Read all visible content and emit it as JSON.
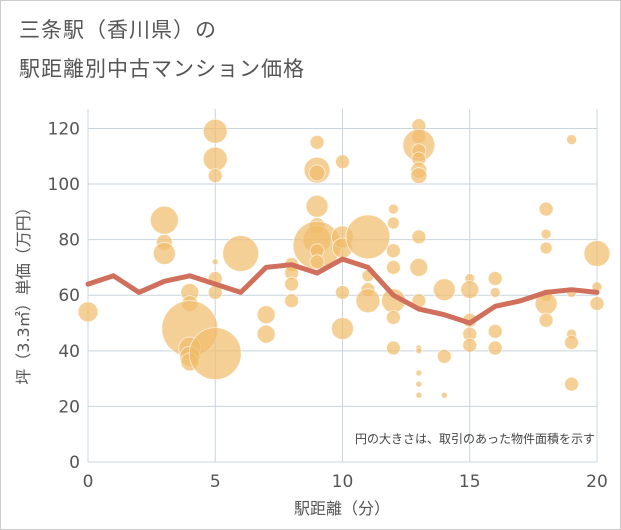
{
  "title": {
    "line1": "三条駅（香川県）の",
    "line2": "駅距離別中古マンション価格"
  },
  "colors": {
    "bubble": "#f0bc6a",
    "line": "#d0705c",
    "grid": "#c8d4de",
    "plot_bg": "#ffffff"
  },
  "chart_data": {
    "type": "scatter",
    "xlabel": "駅距離（分）",
    "ylabel": "坪（3.3㎡）単価（万円）",
    "xlim": [
      0,
      20
    ],
    "ylim": [
      0,
      127
    ],
    "xticks": [
      0,
      5,
      10,
      15,
      20
    ],
    "yticks": [
      0,
      20,
      40,
      60,
      80,
      100,
      120
    ],
    "grid": true,
    "note": "円の大きさは、取引のあった物件面積を示す",
    "bubbles": [
      {
        "x": 0,
        "y": 54,
        "s": 10
      },
      {
        "x": 3,
        "y": 87,
        "s": 14
      },
      {
        "x": 3,
        "y": 79,
        "s": 8
      },
      {
        "x": 3,
        "y": 75,
        "s": 11
      },
      {
        "x": 4,
        "y": 61,
        "s": 9
      },
      {
        "x": 4,
        "y": 57,
        "s": 8
      },
      {
        "x": 4,
        "y": 48,
        "s": 28
      },
      {
        "x": 4,
        "y": 41,
        "s": 11
      },
      {
        "x": 4,
        "y": 38,
        "s": 10
      },
      {
        "x": 4,
        "y": 36,
        "s": 9
      },
      {
        "x": 5,
        "y": 119,
        "s": 12
      },
      {
        "x": 5,
        "y": 109,
        "s": 12
      },
      {
        "x": 5,
        "y": 103,
        "s": 7
      },
      {
        "x": 5,
        "y": 72,
        "s": 3
      },
      {
        "x": 5,
        "y": 66,
        "s": 7
      },
      {
        "x": 5,
        "y": 61,
        "s": 7
      },
      {
        "x": 5,
        "y": 39,
        "s": 26
      },
      {
        "x": 6,
        "y": 75,
        "s": 18
      },
      {
        "x": 7,
        "y": 53,
        "s": 9
      },
      {
        "x": 7,
        "y": 46,
        "s": 9
      },
      {
        "x": 8,
        "y": 71,
        "s": 7
      },
      {
        "x": 8,
        "y": 68,
        "s": 7
      },
      {
        "x": 8,
        "y": 64,
        "s": 7
      },
      {
        "x": 8,
        "y": 58,
        "s": 7
      },
      {
        "x": 9,
        "y": 115,
        "s": 7
      },
      {
        "x": 9,
        "y": 105,
        "s": 13
      },
      {
        "x": 9,
        "y": 104,
        "s": 8
      },
      {
        "x": 9,
        "y": 92,
        "s": 11
      },
      {
        "x": 9,
        "y": 85,
        "s": 8
      },
      {
        "x": 9,
        "y": 80,
        "s": 14
      },
      {
        "x": 9,
        "y": 78,
        "s": 24
      },
      {
        "x": 9,
        "y": 76,
        "s": 7
      },
      {
        "x": 9,
        "y": 72,
        "s": 7
      },
      {
        "x": 10,
        "y": 108,
        "s": 7
      },
      {
        "x": 10,
        "y": 81,
        "s": 11
      },
      {
        "x": 10,
        "y": 77,
        "s": 10
      },
      {
        "x": 10,
        "y": 61,
        "s": 7
      },
      {
        "x": 10,
        "y": 48,
        "s": 11
      },
      {
        "x": 11,
        "y": 81,
        "s": 22
      },
      {
        "x": 11,
        "y": 67,
        "s": 6
      },
      {
        "x": 11,
        "y": 62,
        "s": 7
      },
      {
        "x": 11,
        "y": 58,
        "s": 12
      },
      {
        "x": 12,
        "y": 91,
        "s": 5
      },
      {
        "x": 12,
        "y": 86,
        "s": 6
      },
      {
        "x": 12,
        "y": 76,
        "s": 7
      },
      {
        "x": 12,
        "y": 70,
        "s": 7
      },
      {
        "x": 12,
        "y": 58,
        "s": 12
      },
      {
        "x": 12,
        "y": 52,
        "s": 7
      },
      {
        "x": 12,
        "y": 41,
        "s": 7
      },
      {
        "x": 13,
        "y": 121,
        "s": 7
      },
      {
        "x": 13,
        "y": 117,
        "s": 7
      },
      {
        "x": 13,
        "y": 114,
        "s": 16
      },
      {
        "x": 13,
        "y": 112,
        "s": 7
      },
      {
        "x": 13,
        "y": 109,
        "s": 7
      },
      {
        "x": 13,
        "y": 105,
        "s": 8
      },
      {
        "x": 13,
        "y": 103,
        "s": 8
      },
      {
        "x": 13,
        "y": 81,
        "s": 7
      },
      {
        "x": 13,
        "y": 70,
        "s": 9
      },
      {
        "x": 13,
        "y": 58,
        "s": 7
      },
      {
        "x": 13,
        "y": 41,
        "s": 3
      },
      {
        "x": 13,
        "y": 40,
        "s": 3
      },
      {
        "x": 13,
        "y": 32,
        "s": 3
      },
      {
        "x": 13,
        "y": 28,
        "s": 3
      },
      {
        "x": 13,
        "y": 24,
        "s": 3
      },
      {
        "x": 14,
        "y": 62,
        "s": 11
      },
      {
        "x": 14,
        "y": 38,
        "s": 7
      },
      {
        "x": 14,
        "y": 24,
        "s": 3
      },
      {
        "x": 15,
        "y": 66,
        "s": 5
      },
      {
        "x": 15,
        "y": 62,
        "s": 9
      },
      {
        "x": 15,
        "y": 51,
        "s": 7
      },
      {
        "x": 15,
        "y": 46,
        "s": 7
      },
      {
        "x": 15,
        "y": 42,
        "s": 7
      },
      {
        "x": 16,
        "y": 66,
        "s": 7
      },
      {
        "x": 16,
        "y": 61,
        "s": 5
      },
      {
        "x": 16,
        "y": 47,
        "s": 7
      },
      {
        "x": 16,
        "y": 41,
        "s": 7
      },
      {
        "x": 18,
        "y": 91,
        "s": 7
      },
      {
        "x": 18,
        "y": 82,
        "s": 5
      },
      {
        "x": 18,
        "y": 77,
        "s": 6
      },
      {
        "x": 18,
        "y": 60,
        "s": 6
      },
      {
        "x": 18,
        "y": 57,
        "s": 11
      },
      {
        "x": 18,
        "y": 51,
        "s": 7
      },
      {
        "x": 19,
        "y": 116,
        "s": 5
      },
      {
        "x": 19,
        "y": 61,
        "s": 5
      },
      {
        "x": 19,
        "y": 46,
        "s": 5
      },
      {
        "x": 19,
        "y": 43,
        "s": 7
      },
      {
        "x": 19,
        "y": 28,
        "s": 7
      },
      {
        "x": 20,
        "y": 75,
        "s": 13
      },
      {
        "x": 20,
        "y": 63,
        "s": 5
      },
      {
        "x": 20,
        "y": 57,
        "s": 7
      }
    ],
    "series": [
      {
        "type": "line",
        "x": [
          0,
          1,
          2,
          3,
          4,
          5,
          6,
          7,
          8,
          9,
          10,
          11,
          12,
          13,
          14,
          15,
          16,
          17,
          18,
          19,
          20
        ],
        "values": [
          64,
          67,
          61,
          65,
          67,
          64,
          61,
          70,
          71,
          68,
          73,
          70,
          60,
          55,
          53,
          50,
          56,
          58,
          61,
          62,
          61
        ]
      }
    ]
  }
}
